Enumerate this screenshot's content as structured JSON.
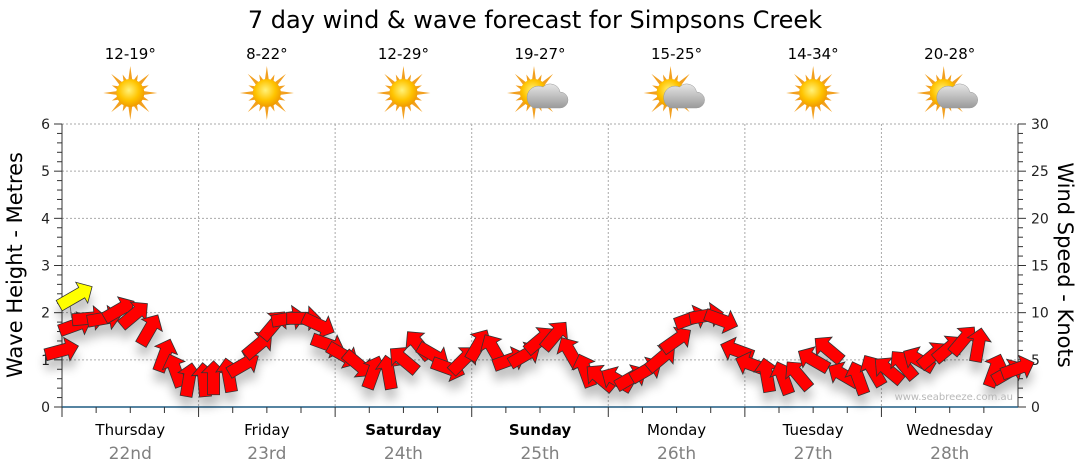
{
  "chart_data": {
    "type": "scatter",
    "title": "7 day wind & wave forecast for Simpsons Creek",
    "ylabel_left": "Wave Height - Metres",
    "ylabel_right": "Wind Speed - Knots",
    "ylim_left": [
      0,
      6
    ],
    "ylim_right": [
      0,
      30
    ],
    "yticks_left": [
      "0",
      "1",
      "2",
      "3",
      "4",
      "5",
      "6"
    ],
    "yticks_right": [
      "0",
      "5",
      "10",
      "15",
      "20",
      "25",
      "30"
    ],
    "grid": true,
    "watermark": "www.seabreeze.com.au",
    "days": [
      {
        "name": "Thursday",
        "date": "22nd",
        "temp": "12-19°",
        "icon": "sunny",
        "bold": false
      },
      {
        "name": "Friday",
        "date": "23rd",
        "temp": "8-22°",
        "icon": "sunny",
        "bold": false
      },
      {
        "name": "Saturday",
        "date": "24th",
        "temp": "12-29°",
        "icon": "sunny",
        "bold": true
      },
      {
        "name": "Sunday",
        "date": "25th",
        "temp": "19-27°",
        "icon": "partly-cloudy",
        "bold": true
      },
      {
        "name": "Monday",
        "date": "26th",
        "temp": "15-25°",
        "icon": "partly-cloudy",
        "bold": false
      },
      {
        "name": "Tuesday",
        "date": "27th",
        "temp": "14-34°",
        "icon": "sunny",
        "bold": false
      },
      {
        "name": "Wednesday",
        "date": "28th",
        "temp": "20-28°",
        "icon": "partly-cloudy",
        "bold": false
      }
    ],
    "wave": {
      "name": "Swell",
      "height_m": 2.35,
      "day_offset": 0.1,
      "direction_deg": -30,
      "color": "#ffff00"
    },
    "wind": {
      "color": "#ff0000",
      "points": [
        [
          0.0,
          6.0,
          -15
        ],
        [
          0.1,
          8.7,
          -20
        ],
        [
          0.2,
          9.4,
          -5
        ],
        [
          0.31,
          9.4,
          -10
        ],
        [
          0.42,
          10.3,
          -30
        ],
        [
          0.53,
          9.8,
          -40
        ],
        [
          0.64,
          8.2,
          -60
        ],
        [
          0.75,
          5.5,
          -70
        ],
        [
          0.83,
          3.9,
          -110
        ],
        [
          0.93,
          2.9,
          -80
        ],
        [
          1.04,
          2.9,
          -95
        ],
        [
          1.11,
          3.1,
          -90
        ],
        [
          1.22,
          3.4,
          -100
        ],
        [
          1.33,
          4.5,
          -30
        ],
        [
          1.44,
          6.6,
          -40
        ],
        [
          1.55,
          8.7,
          -50
        ],
        [
          1.66,
          9.4,
          -10
        ],
        [
          1.77,
          9.4,
          0
        ],
        [
          1.88,
          8.7,
          25
        ],
        [
          1.95,
          6.6,
          20
        ],
        [
          2.06,
          5.5,
          30
        ],
        [
          2.17,
          4.5,
          40
        ],
        [
          2.28,
          3.7,
          -70
        ],
        [
          2.39,
          3.7,
          -100
        ],
        [
          2.5,
          5.0,
          -140
        ],
        [
          2.61,
          6.6,
          -130
        ],
        [
          2.72,
          5.5,
          30
        ],
        [
          2.83,
          4.1,
          20
        ],
        [
          2.94,
          5.0,
          -45
        ],
        [
          3.05,
          6.6,
          -60
        ],
        [
          3.16,
          6.1,
          -120
        ],
        [
          3.28,
          5.0,
          -20
        ],
        [
          3.39,
          5.5,
          -30
        ],
        [
          3.5,
          7.1,
          -40
        ],
        [
          3.61,
          7.6,
          -50
        ],
        [
          3.72,
          5.8,
          -120
        ],
        [
          3.83,
          3.9,
          -110
        ],
        [
          3.94,
          3.1,
          -140
        ],
        [
          4.06,
          2.9,
          -150
        ],
        [
          4.17,
          3.1,
          -30
        ],
        [
          4.28,
          3.9,
          -30
        ],
        [
          4.39,
          5.2,
          -40
        ],
        [
          4.5,
          7.1,
          -35
        ],
        [
          4.61,
          9.4,
          -20
        ],
        [
          4.72,
          9.7,
          -10
        ],
        [
          4.83,
          9.2,
          20
        ],
        [
          4.94,
          6.0,
          -160
        ],
        [
          5.05,
          4.5,
          -160
        ],
        [
          5.16,
          3.4,
          -100
        ],
        [
          5.28,
          3.1,
          -110
        ],
        [
          5.39,
          3.4,
          -130
        ],
        [
          5.5,
          5.0,
          -150
        ],
        [
          5.61,
          6.1,
          -140
        ],
        [
          5.72,
          3.4,
          -150
        ],
        [
          5.83,
          3.1,
          -110
        ],
        [
          5.94,
          3.9,
          -120
        ],
        [
          6.05,
          3.9,
          -140
        ],
        [
          6.16,
          4.5,
          -130
        ],
        [
          6.27,
          5.0,
          -150
        ],
        [
          6.38,
          5.5,
          -40
        ],
        [
          6.49,
          6.2,
          -40
        ],
        [
          6.6,
          7.1,
          -50
        ],
        [
          6.71,
          6.6,
          -80
        ],
        [
          6.83,
          3.9,
          -70
        ],
        [
          6.93,
          3.7,
          -30
        ],
        [
          7.0,
          4.1,
          -20
        ]
      ]
    }
  }
}
